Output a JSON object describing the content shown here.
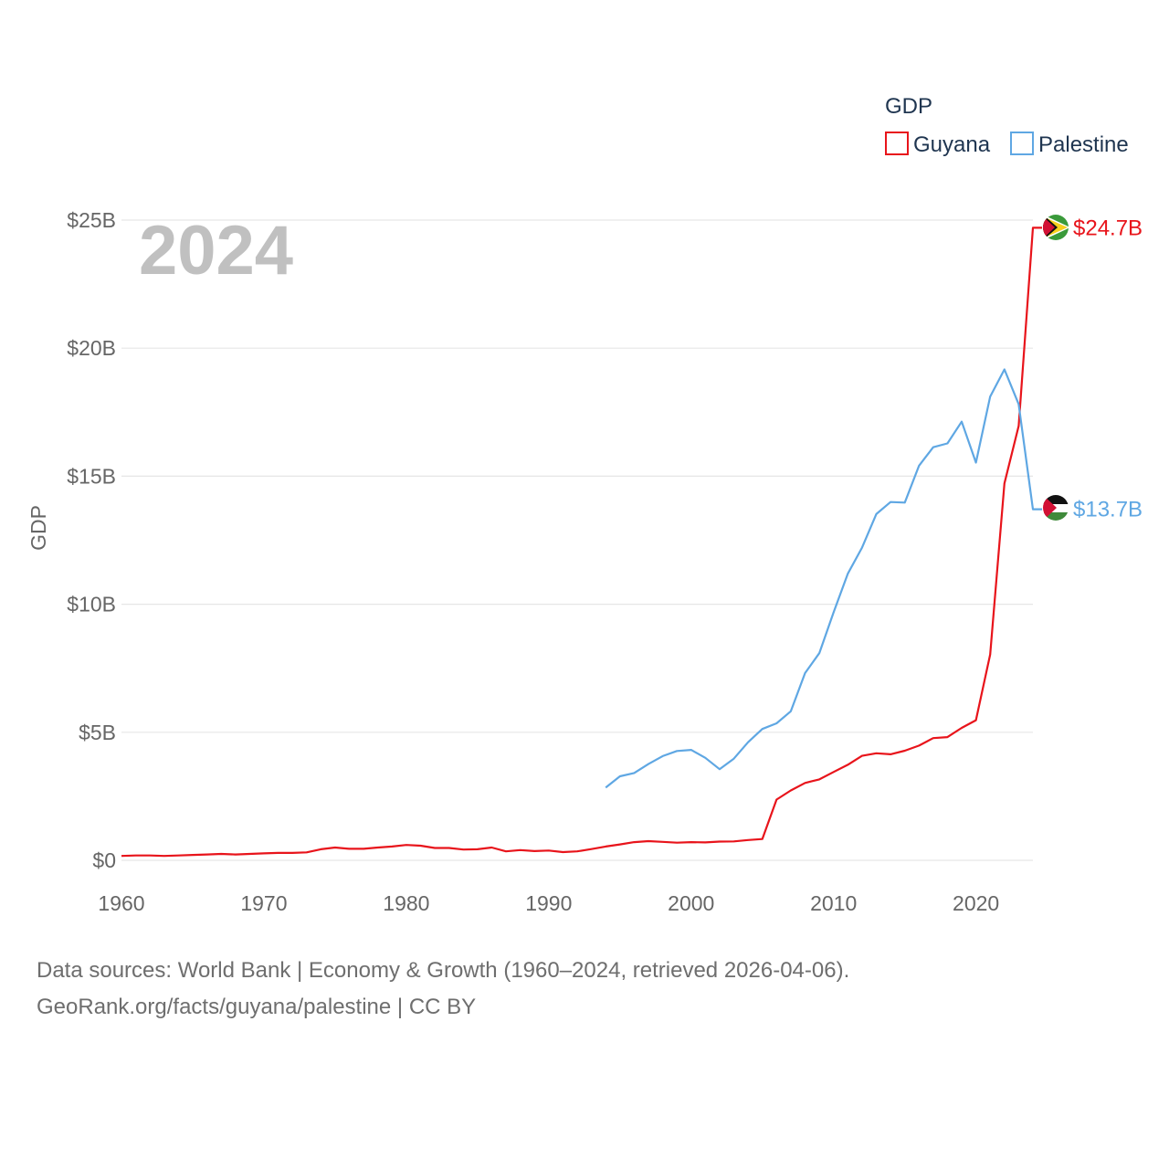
{
  "chart_data": {
    "type": "line",
    "title": "GDP",
    "ylabel": "GDP",
    "year_label": "2024",
    "x_ticks": [
      1960,
      1970,
      1980,
      1990,
      2000,
      2010,
      2020
    ],
    "y_ticks": [
      {
        "value": 0,
        "label": "$0"
      },
      {
        "value": 5,
        "label": "$5B"
      },
      {
        "value": 10,
        "label": "$10B"
      },
      {
        "value": 15,
        "label": "$15B"
      },
      {
        "value": 20,
        "label": "$20B"
      },
      {
        "value": 25,
        "label": "$25B"
      }
    ],
    "xlim": [
      1960,
      2024
    ],
    "ylim": [
      0,
      25
    ],
    "unit": "billion USD",
    "legend": {
      "title": "GDP",
      "position": "top-right"
    },
    "series": [
      {
        "name": "Guyana",
        "color": "#e8141b",
        "end_label": "$24.7B",
        "x": [
          1960,
          1961,
          1962,
          1963,
          1964,
          1965,
          1966,
          1967,
          1968,
          1969,
          1970,
          1971,
          1972,
          1973,
          1974,
          1975,
          1976,
          1977,
          1978,
          1979,
          1980,
          1981,
          1982,
          1983,
          1984,
          1985,
          1986,
          1987,
          1988,
          1989,
          1990,
          1991,
          1992,
          1993,
          1994,
          1995,
          1996,
          1997,
          1998,
          1999,
          2000,
          2001,
          2002,
          2003,
          2004,
          2005,
          2006,
          2007,
          2008,
          2009,
          2010,
          2011,
          2012,
          2013,
          2014,
          2015,
          2016,
          2017,
          2018,
          2019,
          2020,
          2021,
          2022,
          2023,
          2024
        ],
        "values": [
          0.17,
          0.19,
          0.19,
          0.17,
          0.19,
          0.21,
          0.23,
          0.25,
          0.23,
          0.25,
          0.27,
          0.29,
          0.29,
          0.31,
          0.43,
          0.5,
          0.45,
          0.45,
          0.5,
          0.54,
          0.6,
          0.57,
          0.48,
          0.48,
          0.42,
          0.43,
          0.5,
          0.35,
          0.4,
          0.36,
          0.38,
          0.32,
          0.35,
          0.44,
          0.54,
          0.62,
          0.71,
          0.75,
          0.72,
          0.69,
          0.71,
          0.7,
          0.73,
          0.74,
          0.79,
          0.83,
          2.37,
          2.73,
          3.02,
          3.16,
          3.45,
          3.73,
          4.08,
          4.18,
          4.14,
          4.28,
          4.48,
          4.77,
          4.81,
          5.17,
          5.47,
          8.04,
          14.72,
          16.96,
          24.7
        ]
      },
      {
        "name": "Palestine",
        "color": "#5fa7e3",
        "end_label": "$13.7B",
        "x": [
          1994,
          1995,
          1996,
          1997,
          1998,
          1999,
          2000,
          2001,
          2002,
          2003,
          2004,
          2005,
          2006,
          2007,
          2008,
          2009,
          2010,
          2011,
          2012,
          2013,
          2014,
          2015,
          2016,
          2017,
          2018,
          2019,
          2020,
          2021,
          2022,
          2023,
          2024
        ],
        "values": [
          2.84,
          3.28,
          3.41,
          3.76,
          4.07,
          4.27,
          4.31,
          4.0,
          3.56,
          3.97,
          4.61,
          5.13,
          5.35,
          5.82,
          7.31,
          8.09,
          9.68,
          11.19,
          12.21,
          13.52,
          13.99,
          13.97,
          15.41,
          16.13,
          16.28,
          17.13,
          15.53,
          18.11,
          19.17,
          17.81,
          13.71
        ]
      }
    ]
  },
  "source_line1": "Data sources: World Bank | Economy & Growth (1960–2024, retrieved 2026-04-06).",
  "source_line2": "GeoRank.org/facts/guyana/palestine | CC BY"
}
